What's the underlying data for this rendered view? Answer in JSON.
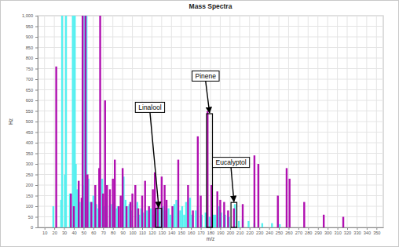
{
  "chart_data": {
    "type": "bar",
    "title": "Mass Spectra",
    "x_label": "m/z",
    "y_label": "Hz",
    "xlim": [
      3,
      357
    ],
    "ylim": [
      0,
      1000
    ],
    "xticks": [
      10,
      20,
      30,
      40,
      50,
      60,
      70,
      80,
      90,
      100,
      110,
      120,
      130,
      140,
      150,
      160,
      170,
      180,
      190,
      200,
      210,
      220,
      230,
      240,
      250,
      260,
      270,
      280,
      290,
      300,
      310,
      320,
      330,
      340,
      350
    ],
    "yticks": [
      0,
      50,
      100,
      150,
      200,
      250,
      300,
      350,
      400,
      450,
      500,
      550,
      600,
      650,
      700,
      750,
      800,
      850,
      900,
      950,
      {
        "value": 1000,
        "label": "1,000"
      }
    ],
    "grid": true,
    "series": [
      {
        "color": "#55f0f0",
        "x": [
          19,
          27,
          28,
          31,
          32,
          36,
          39,
          41,
          42,
          43,
          46,
          50,
          51,
          53,
          55,
          57,
          60,
          63,
          65,
          69,
          71,
          73,
          77,
          79,
          81,
          84,
          85,
          91,
          93,
          96,
          97,
          99,
          105,
          107,
          109,
          111,
          115,
          119,
          121,
          125,
          127,
          128,
          131,
          133,
          137,
          139,
          143,
          145,
          147,
          149,
          151,
          153,
          155,
          159,
          161,
          165,
          167,
          171,
          175,
          179,
          183,
          185,
          189,
          191,
          195,
          199,
          205,
          209,
          213,
          219,
          225,
          233,
          243,
          251
        ],
        "values": [
          100,
          130,
          1000,
          250,
          1000,
          160,
          1000,
          1000,
          300,
          180,
          120,
          200,
          1000,
          1000,
          230,
          120,
          150,
          110,
          90,
          230,
          100,
          140,
          100,
          110,
          120,
          90,
          100,
          240,
          130,
          100,
          110,
          80,
          120,
          60,
          90,
          70,
          80,
          90,
          60,
          90,
          70,
          85,
          100,
          80,
          90,
          60,
          110,
          130,
          70,
          80,
          100,
          60,
          120,
          140,
          60,
          80,
          100,
          60,
          70,
          50,
          60,
          60,
          100,
          70,
          60,
          50,
          110,
          30,
          40,
          30,
          20,
          20,
          20,
          15
        ]
      },
      {
        "color": "#b010b0",
        "x": [
          22,
          37,
          40,
          45,
          48,
          49,
          52,
          54,
          58,
          62,
          66,
          67,
          70,
          72,
          74,
          77,
          80,
          82,
          86,
          88,
          90,
          94,
          98,
          100,
          103,
          106,
          110,
          113,
          117,
          121,
          123,
          126,
          130,
          133,
          135,
          141,
          147,
          157,
          162,
          167,
          170,
          177,
          181,
          187,
          190,
          194,
          198,
          204,
          213,
          225,
          229,
          249,
          258,
          261,
          276,
          296,
          316
        ],
        "values": [
          760,
          160,
          100,
          220,
          140,
          1000,
          1000,
          250,
          120,
          200,
          280,
          1000,
          160,
          600,
          200,
          180,
          230,
          320,
          100,
          150,
          280,
          100,
          120,
          160,
          200,
          90,
          150,
          220,
          100,
          180,
          260,
          120,
          240,
          200,
          130,
          100,
          320,
          200,
          80,
          430,
          150,
          550,
          200,
          170,
          130,
          120,
          80,
          90,
          110,
          340,
          300,
          150,
          280,
          230,
          120,
          60,
          50
        ]
      }
    ],
    "annotations": [
      {
        "text": "Linalool",
        "x": [
          124,
          130
        ],
        "y": [
          0,
          90
        ],
        "xytext": [
          118,
          567
        ]
      },
      {
        "text": "Pinene",
        "x": [
          176,
          182
        ],
        "y": [
          0,
          537
        ],
        "xytext": [
          175,
          715
        ]
      },
      {
        "text": "Eucalyptol",
        "x": [
          201,
          207
        ],
        "y": [
          0,
          118
        ],
        "xytext": [
          201,
          307
        ]
      }
    ]
  }
}
